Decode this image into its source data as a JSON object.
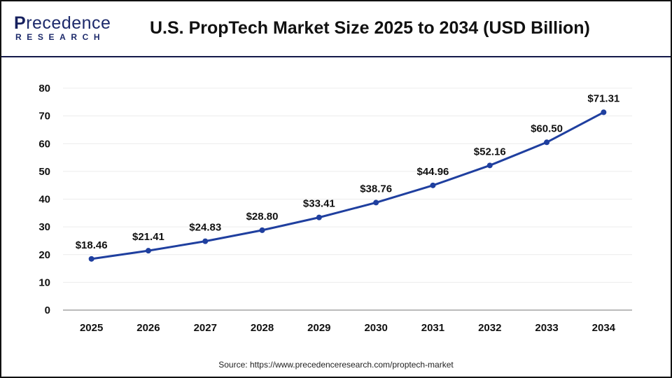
{
  "logo": {
    "text_top": "recedence",
    "text_top_initial": "P",
    "text_bottom": "RESEARCH"
  },
  "title": "U.S. PropTech Market Size 2025 to 2034 (USD Billion)",
  "source": "Source: https://www.precedenceresearch.com/proptech-market",
  "colors": {
    "line": "#1f3f9f",
    "grid": "#ececec",
    "axis": "#bbbbbb",
    "header_rule": "#141a4a"
  },
  "chart_data": {
    "type": "line",
    "title": "U.S. PropTech Market Size 2025 to 2034 (USD Billion)",
    "xlabel": "",
    "ylabel": "",
    "categories": [
      "2025",
      "2026",
      "2027",
      "2028",
      "2029",
      "2030",
      "2031",
      "2032",
      "2033",
      "2034"
    ],
    "values": [
      18.46,
      21.41,
      24.83,
      28.8,
      33.41,
      38.76,
      44.96,
      52.16,
      60.5,
      71.31
    ],
    "data_labels": [
      "$18.46",
      "$21.41",
      "$24.83",
      "$28.80",
      "$33.41",
      "$38.76",
      "$44.96",
      "$52.16",
      "$60.50",
      "$71.31"
    ],
    "ylim": [
      0,
      80
    ],
    "yticks": [
      0,
      10,
      20,
      30,
      40,
      50,
      60,
      70,
      80
    ],
    "grid": true,
    "legend": "none"
  }
}
